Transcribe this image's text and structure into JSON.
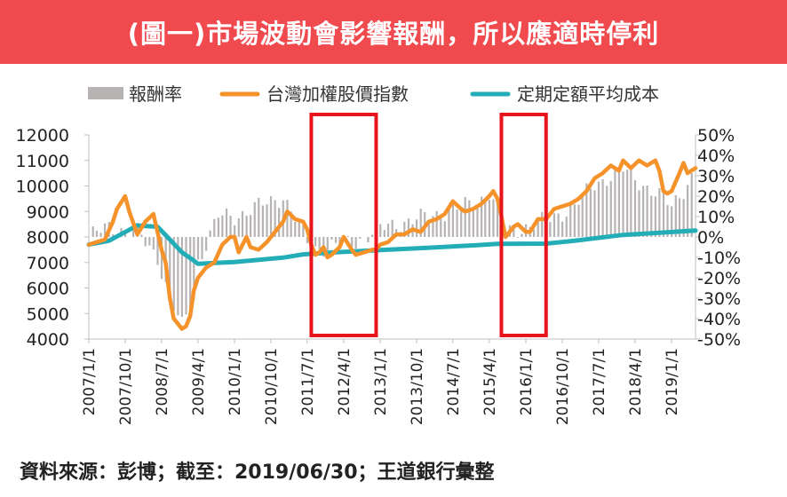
{
  "title": "(圖一)市場波動會影響報酬，所以應適時停利",
  "source": "資料來源：彭博；截至：2019/06/30；王道銀行彙整",
  "colors": {
    "header": "#f04a4f",
    "bars": "#b7b3b3",
    "index": "#f5922a",
    "dca": "#23aeb7",
    "highlight": "#e8141b"
  },
  "chart_data": {
    "type": "line",
    "legend": [
      "報酬率",
      "台灣加權股價指數",
      "定期定額平均成本"
    ],
    "legend_position": "top",
    "y_left": {
      "ticks": [
        "12000",
        "11000",
        "10000",
        "9000",
        "8000",
        "7000",
        "6000",
        "5000",
        "4000"
      ],
      "range": [
        4000,
        12000
      ]
    },
    "y_right": {
      "ticks": [
        "50%",
        "40%",
        "30%",
        "20%",
        "10%",
        "0%",
        "-10%",
        "-20%",
        "-30%",
        "-40%",
        "-50%"
      ],
      "range": [
        -0.5,
        0.5
      ]
    },
    "x_ticks": [
      "2007/1/1",
      "2007/10/1",
      "2008/7/1",
      "2009/4/1",
      "2010/1/1",
      "2010/10/1",
      "2011/7/1",
      "2012/4/1",
      "2013/1/1",
      "2013/10/1",
      "2014/7/1",
      "2015/4/1",
      "2016/1/1",
      "2016/10/1",
      "2017/7/1",
      "2018/4/1",
      "2019/1/1"
    ],
    "x_range": [
      "2007/1/1",
      "2019/6/30"
    ],
    "highlight_ranges": [
      [
        "2011/8/1",
        "2012/12/1"
      ],
      [
        "2015/7/1",
        "2016/6/1"
      ]
    ],
    "series": [
      {
        "name": "台灣加權股價指數",
        "axis": "left",
        "x": [
          "2007/1/1",
          "2007/3/1",
          "2007/5/1",
          "2007/7/1",
          "2007/8/1",
          "2007/10/1",
          "2007/11/1",
          "2008/1/1",
          "2008/3/1",
          "2008/5/1",
          "2008/7/1",
          "2008/8/1",
          "2008/9/1",
          "2008/10/1",
          "2008/11/1",
          "2008/12/1",
          "2009/1/1",
          "2009/2/1",
          "2009/3/1",
          "2009/4/1",
          "2009/6/1",
          "2009/8/1",
          "2009/10/1",
          "2009/12/1",
          "2010/1/1",
          "2010/2/1",
          "2010/4/1",
          "2010/5/1",
          "2010/7/1",
          "2010/9/1",
          "2010/11/1",
          "2011/1/1",
          "2011/2/1",
          "2011/4/1",
          "2011/6/1",
          "2011/7/1",
          "2011/8/1",
          "2011/9/1",
          "2011/10/1",
          "2011/11/1",
          "2011/12/1",
          "2012/1/1",
          "2012/3/1",
          "2012/4/1",
          "2012/6/1",
          "2012/7/1",
          "2012/9/1",
          "2012/11/1",
          "2012/12/1",
          "2013/1/1",
          "2013/3/1",
          "2013/5/1",
          "2013/7/1",
          "2013/9/1",
          "2013/11/1",
          "2014/1/1",
          "2014/3/1",
          "2014/5/1",
          "2014/7/1",
          "2014/9/1",
          "2014/10/1",
          "2014/12/1",
          "2015/2/1",
          "2015/4/1",
          "2015/5/1",
          "2015/6/1",
          "2015/7/1",
          "2015/8/1",
          "2015/9/1",
          "2015/10/1",
          "2015/11/1",
          "2016/1/1",
          "2016/2/1",
          "2016/4/1",
          "2016/6/1",
          "2016/8/1",
          "2016/10/1",
          "2016/12/1",
          "2017/2/1",
          "2017/4/1",
          "2017/6/1",
          "2017/8/1",
          "2017/10/1",
          "2017/12/1",
          "2018/1/1",
          "2018/3/1",
          "2018/5/1",
          "2018/7/1",
          "2018/9/1",
          "2018/10/1",
          "2018/11/1",
          "2018/12/1",
          "2019/1/1",
          "2019/3/1",
          "2019/4/1",
          "2019/5/1",
          "2019/6/30"
        ],
        "values": [
          7700,
          7800,
          7900,
          8600,
          9100,
          9600,
          9000,
          8100,
          8600,
          8900,
          7500,
          7000,
          5600,
          4800,
          4600,
          4400,
          4500,
          4900,
          5900,
          6400,
          6800,
          7000,
          7700,
          8000,
          8000,
          7400,
          8000,
          7600,
          7500,
          7800,
          8200,
          8600,
          9000,
          8700,
          8600,
          8300,
          7700,
          7300,
          7400,
          7600,
          7200,
          7300,
          7600,
          8000,
          7500,
          7300,
          7400,
          7500,
          7500,
          7700,
          7800,
          8100,
          8100,
          8300,
          8200,
          8600,
          8700,
          8900,
          9400,
          9100,
          9000,
          9100,
          9300,
          9600,
          9800,
          9500,
          8800,
          8000,
          8200,
          8400,
          8500,
          8200,
          8200,
          8700,
          8700,
          9100,
          9200,
          9300,
          9500,
          9800,
          10300,
          10500,
          10800,
          10600,
          11000,
          10700,
          11000,
          10800,
          11000,
          10600,
          9800,
          9700,
          9800,
          10500,
          10900,
          10500,
          10700
        ]
      },
      {
        "name": "定期定額平均成本",
        "axis": "left",
        "x": [
          "2007/1/1",
          "2007/6/1",
          "2008/1/1",
          "2008/6/1",
          "2008/9/1",
          "2008/12/1",
          "2009/3/1",
          "2009/4/1",
          "2010/1/1",
          "2011/1/1",
          "2011/6/1",
          "2012/1/1",
          "2013/1/1",
          "2014/1/1",
          "2015/1/1",
          "2015/6/1",
          "2016/6/1",
          "2017/1/1",
          "2018/1/1",
          "2019/6/30"
        ],
        "values": [
          7700,
          7850,
          8450,
          8400,
          7900,
          7400,
          7070,
          6950,
          7020,
          7190,
          7320,
          7390,
          7490,
          7580,
          7680,
          7730,
          7740,
          7850,
          8080,
          8250
        ]
      },
      {
        "name": "報酬率",
        "axis": "right",
        "type": "bar",
        "x": [
          "2007/1/1",
          "2007/6/1",
          "2008/1/1",
          "2008/6/1",
          "2008/9/1",
          "2008/12/1",
          "2009/3/1",
          "2009/4/1",
          "2009/9/1",
          "2010/1/1",
          "2011/1/1",
          "2011/8/1",
          "2012/6/1",
          "2013/1/1",
          "2013/6/1",
          "2014/1/1",
          "2015/1/1",
          "2015/4/1",
          "2015/8/1",
          "2016/6/1",
          "2017/1/1",
          "2017/6/1",
          "2018/1/1",
          "2018/10/1",
          "2019/1/1",
          "2019/6/30"
        ],
        "values": [
          0.0,
          0.05,
          0.02,
          -0.1,
          -0.3,
          -0.44,
          -0.3,
          -0.12,
          0.1,
          0.1,
          0.2,
          -0.06,
          -0.03,
          0.04,
          0.07,
          0.1,
          0.17,
          0.22,
          0.02,
          0.08,
          0.15,
          0.26,
          0.33,
          0.2,
          0.15,
          0.32
        ]
      }
    ]
  }
}
